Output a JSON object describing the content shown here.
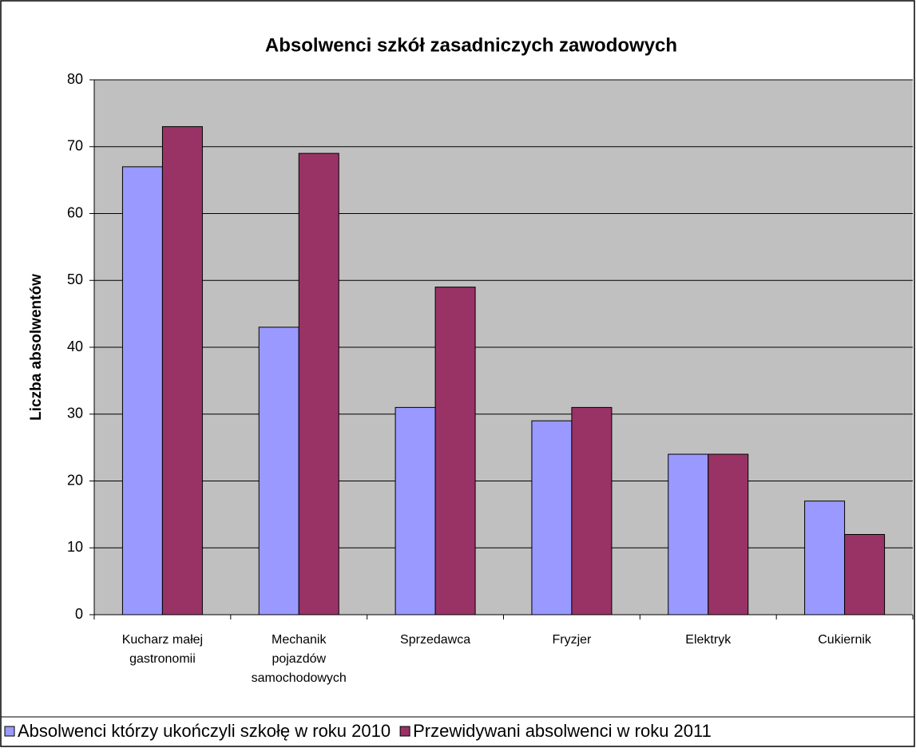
{
  "chart_data": {
    "type": "bar",
    "title": "Absolwenci szkół zasadniczych zawodowych",
    "y_label": "Liczba absolwentów",
    "categories": [
      "Kucharz małej\ngastronomii",
      "Mechanik\npojazdów\nsamochodowych",
      "Sprzedawca",
      "Fryzjer",
      "Elektryk",
      "Cukiernik"
    ],
    "series": [
      {
        "name": "Absolwenci którzy ukończyli szkołę w roku 2010",
        "color": "#9999ff",
        "values": [
          67,
          43,
          31,
          29,
          24,
          17
        ]
      },
      {
        "name": "Przewidywani absolwenci w roku 2011",
        "color": "#993366",
        "values": [
          73,
          69,
          49,
          31,
          24,
          12
        ]
      }
    ],
    "ylim": [
      0,
      80
    ],
    "yticks": [
      0,
      10,
      20,
      30,
      40,
      50,
      60,
      70,
      80
    ],
    "grid": true,
    "legend": "bottom"
  }
}
